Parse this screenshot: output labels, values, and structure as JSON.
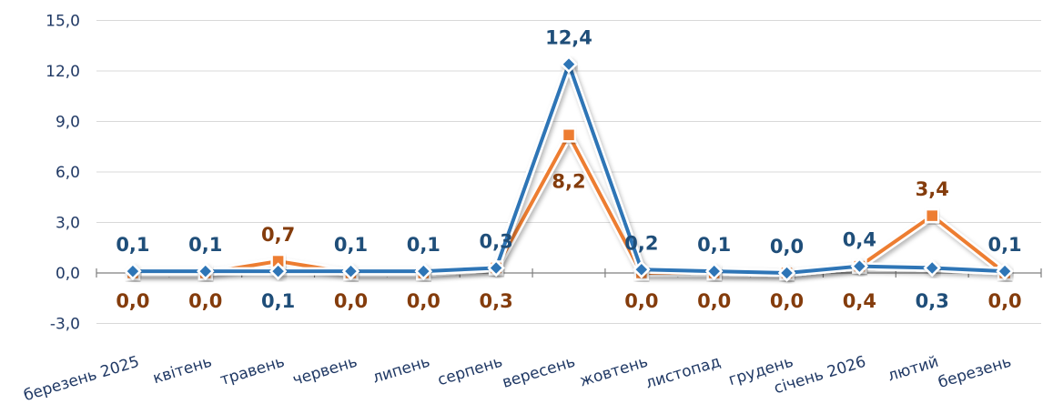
{
  "chart_data": {
    "type": "line",
    "categories": [
      "березень 2025",
      "квітень",
      "травень",
      "червень",
      "липень",
      "серпень",
      "вересень",
      "жовтень",
      "листопад",
      "грудень",
      "січень 2026",
      "лютий",
      "березень"
    ],
    "series": [
      {
        "values": [
          0.1,
          0.1,
          0.1,
          0.1,
          0.1,
          0.3,
          12.4,
          0.2,
          0.1,
          0.0,
          0.4,
          0.3,
          0.1
        ],
        "labels": [
          "0,1",
          "0,1",
          "0,1",
          "0,1",
          "0,1",
          "0,3",
          "12,4",
          "0,2",
          "0,1",
          "0,0",
          "0,4",
          "0,3",
          "0,1"
        ],
        "label_pos": [
          "above",
          "above",
          "below",
          "above",
          "above",
          "above",
          "above",
          "above",
          "above",
          "above",
          "above",
          "below",
          "above"
        ],
        "color": "#2e75b6",
        "marker": "diamond"
      },
      {
        "values": [
          0.0,
          0.0,
          0.7,
          0.0,
          0.0,
          0.3,
          8.2,
          0.0,
          0.0,
          0.0,
          0.4,
          3.4,
          0.0
        ],
        "labels": [
          "0,0",
          "0,0",
          "0,7",
          "0,0",
          "0,0",
          "0,3",
          "8,2",
          "0,0",
          "0,0",
          "0,0",
          "0,4",
          "3,4",
          "0,0"
        ],
        "label_pos": [
          "below",
          "below",
          "above",
          "below",
          "below",
          "below",
          "below",
          "below",
          "below",
          "below",
          "below",
          "above",
          "below"
        ],
        "color": "#ed7d31",
        "marker": "square"
      }
    ],
    "yticks": [
      -3.0,
      0.0,
      3.0,
      6.0,
      9.0,
      12.0,
      15.0
    ],
    "ytick_labels": [
      "-3,0",
      "0,0",
      "3,0",
      "6,0",
      "9,0",
      "12,0",
      "15,0"
    ],
    "ylim": [
      -3,
      15
    ],
    "grid": true,
    "legend": "none"
  }
}
